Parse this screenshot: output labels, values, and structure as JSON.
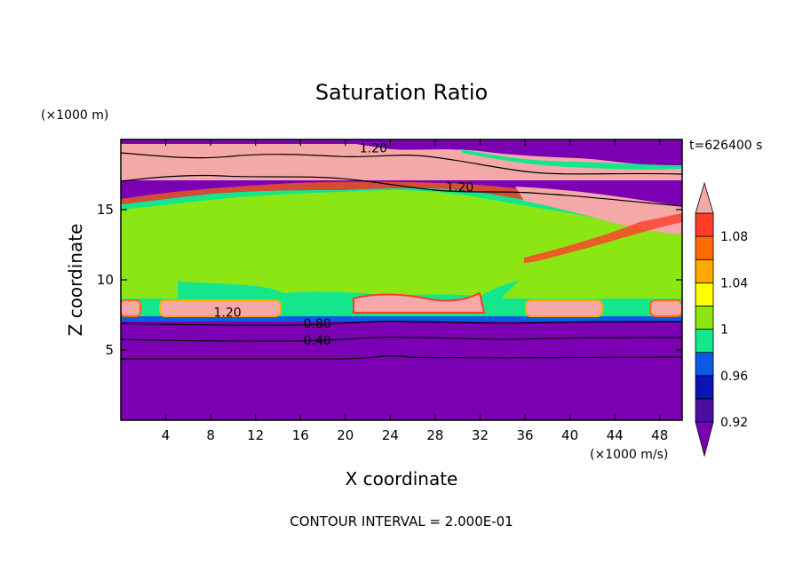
{
  "chart_data": {
    "type": "heatmap",
    "title": "Saturation Ratio",
    "xlabel": "X coordinate",
    "ylabel": "Z coordinate",
    "x_unit": "(×1000 m/s)",
    "y_unit": "(×1000 m)",
    "time_label": "t=626400 s",
    "footer": "CONTOUR INTERVAL = 2.000E-01",
    "xlim": [
      0,
      50
    ],
    "ylim": [
      0,
      20
    ],
    "x_ticks": [
      4,
      8,
      12,
      16,
      20,
      24,
      28,
      32,
      36,
      40,
      44,
      48
    ],
    "y_ticks": [
      5,
      10,
      15
    ],
    "colorbar": {
      "levels": [
        0.92,
        0.94,
        0.96,
        0.98,
        1.0,
        1.02,
        1.04,
        1.06,
        1.08,
        1.1
      ],
      "labels": [
        "0.92",
        "0.96",
        "1",
        "1.04",
        "1.08"
      ],
      "label_values": [
        0.92,
        0.96,
        1.0,
        1.04,
        1.08
      ],
      "colors": {
        "below": "#7b00b4",
        "0.92": "#4b0fa0",
        "0.94": "#0a14b4",
        "0.96": "#0a5ae6",
        "0.98": "#14e68c",
        "1.0": "#8ce614",
        "1.02": "#ffff00",
        "1.04": "#ffaa00",
        "1.06": "#ff6a00",
        "1.08": "#ff3c28",
        "above": "#f5a8a8"
      }
    },
    "contour_labels": [
      {
        "text": "1.20",
        "x": 22.5,
        "y": 19.4
      },
      {
        "text": "1.20",
        "x": 30.2,
        "y": 16.6
      },
      {
        "text": "1.20",
        "x": 9.5,
        "y": 7.7
      },
      {
        "text": "0.80",
        "x": 17.5,
        "y": 6.9
      },
      {
        "text": "0.40",
        "x": 17.5,
        "y": 5.7
      }
    ]
  }
}
